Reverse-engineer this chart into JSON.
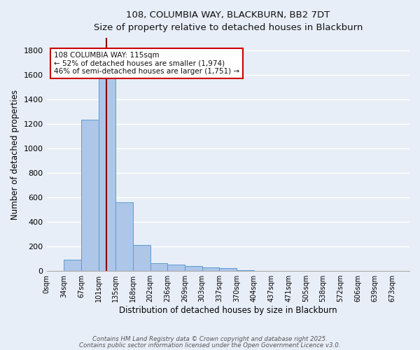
{
  "title_line1": "108, COLUMBIA WAY, BLACKBURN, BB2 7DT",
  "title_line2": "Size of property relative to detached houses in Blackburn",
  "xlabel": "Distribution of detached houses by size in Blackburn",
  "ylabel": "Number of detached properties",
  "bar_labels": [
    "0sqm",
    "34sqm",
    "67sqm",
    "101sqm",
    "135sqm",
    "168sqm",
    "202sqm",
    "236sqm",
    "269sqm",
    "303sqm",
    "337sqm",
    "370sqm",
    "404sqm",
    "437sqm",
    "471sqm",
    "505sqm",
    "538sqm",
    "572sqm",
    "606sqm",
    "639sqm",
    "673sqm"
  ],
  "bar_values": [
    0,
    90,
    1235,
    1680,
    560,
    210,
    65,
    50,
    40,
    28,
    25,
    8,
    3,
    1,
    0,
    0,
    0,
    0,
    0,
    0,
    0
  ],
  "bar_color": "#aec6e8",
  "bar_edgecolor": "#5b9bd5",
  "background_color": "#e8eef8",
  "grid_color": "#ffffff",
  "vline_x_index": 3.45,
  "vline_color": "#8b0000",
  "ylim": [
    0,
    1900
  ],
  "yticks": [
    0,
    200,
    400,
    600,
    800,
    1000,
    1200,
    1400,
    1600,
    1800
  ],
  "annotation_text": "108 COLUMBIA WAY: 115sqm\n← 52% of detached houses are smaller (1,974)\n46% of semi-detached houses are larger (1,751) →",
  "annotation_box_color": "#ffffff",
  "annotation_box_edgecolor": "#cc0000",
  "footer_line1": "Contains HM Land Registry data © Crown copyright and database right 2025.",
  "footer_line2": "Contains public sector information licensed under the Open Government Licence v3.0."
}
